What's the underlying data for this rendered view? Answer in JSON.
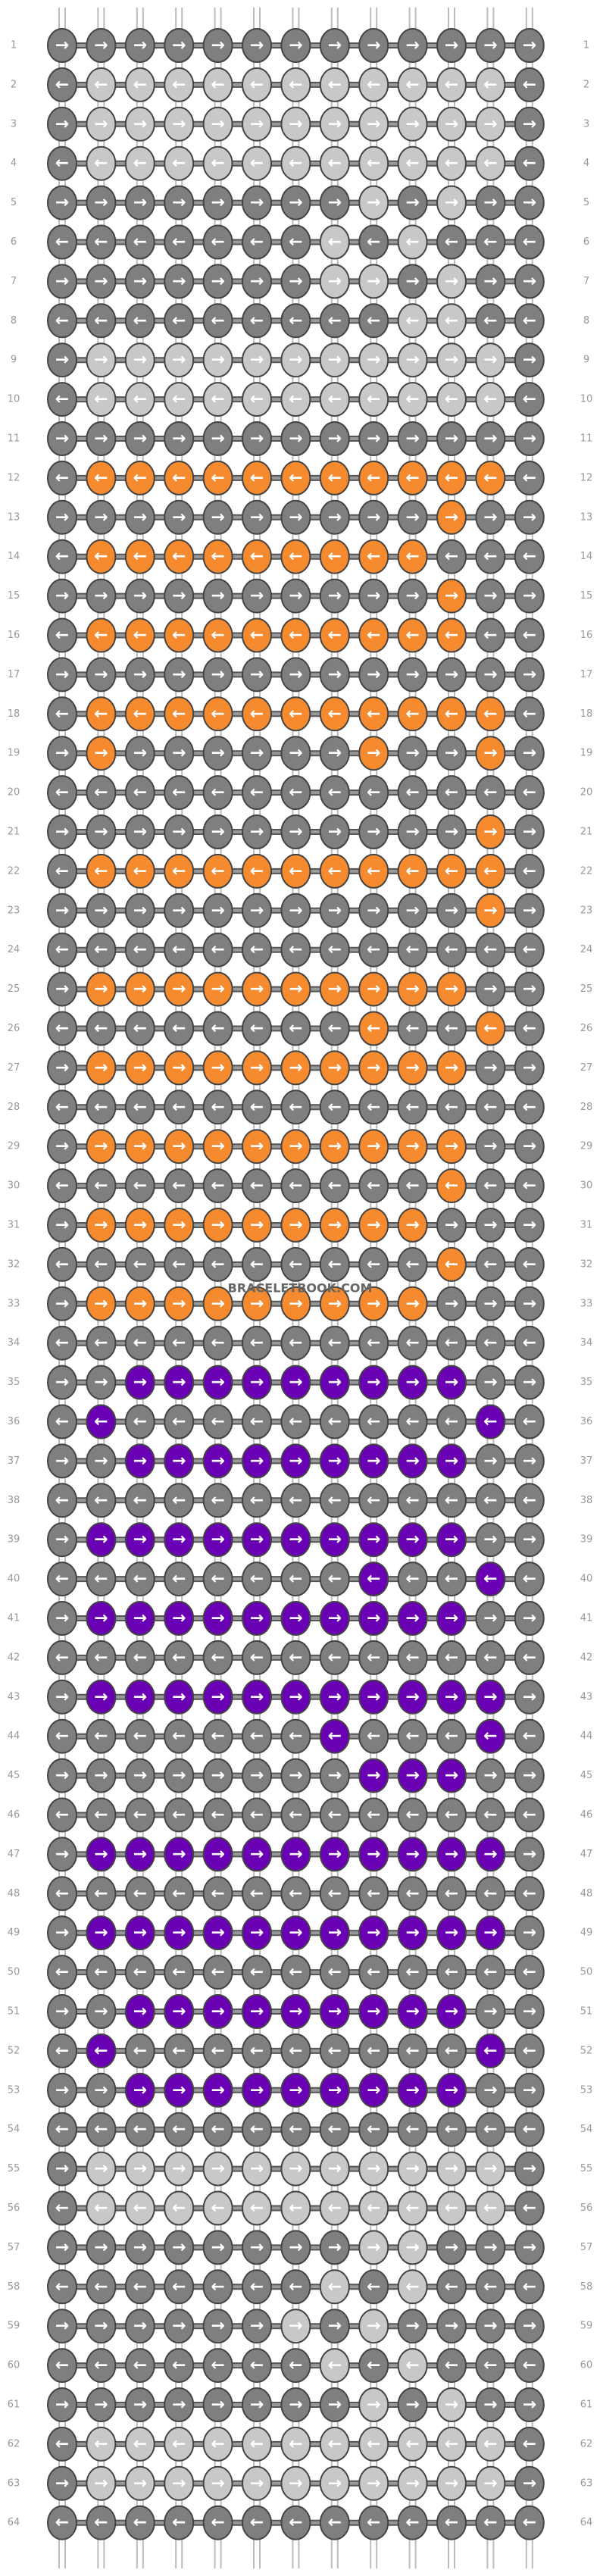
{
  "pattern": {
    "watermark": "BRACELETBOOK.COM",
    "colors": {
      "G": "#7f7f7f",
      "L": "#c8c8c8",
      "O": "#f58a2e",
      "P": "#6a00b4"
    },
    "rows": [
      {
        "label": 1,
        "arrow": "→",
        "knots": "GGGGGGGGGGGGG"
      },
      {
        "label": 2,
        "arrow": "←",
        "knots": "GLLLLLLLLLLLG"
      },
      {
        "label": 3,
        "arrow": "→",
        "knots": "GLLLLLLLLLLLG"
      },
      {
        "label": 4,
        "arrow": "←",
        "knots": "GLLLLLLLLLLLG"
      },
      {
        "label": 5,
        "arrow": "→",
        "knots": "GGGGGGGGLGLGG"
      },
      {
        "label": 6,
        "arrow": "←",
        "knots": "GGGGGGGLGLGGG"
      },
      {
        "label": 7,
        "arrow": "→",
        "knots": "GGGGGGGLLGLGG"
      },
      {
        "label": 8,
        "arrow": "←",
        "knots": "GGGGGGGGGLLGG"
      },
      {
        "label": 9,
        "arrow": "→",
        "knots": "GLLLLLLLLLLLG"
      },
      {
        "label": 10,
        "arrow": "←",
        "knots": "GLLLLLLLLLLLG"
      },
      {
        "label": 11,
        "arrow": "→",
        "knots": "GGGGGGGGGGGGG"
      },
      {
        "label": 12,
        "arrow": "←",
        "knots": "GOOOOOOOOOOOG"
      },
      {
        "label": 13,
        "arrow": "→",
        "knots": "GGGGGGGGGGOGG"
      },
      {
        "label": 14,
        "arrow": "←",
        "knots": "GOOOOOOOOOGGG"
      },
      {
        "label": 15,
        "arrow": "→",
        "knots": "GGGGGGGGGGOGG"
      },
      {
        "label": 16,
        "arrow": "←",
        "knots": "GOOOOOOOOOOGG"
      },
      {
        "label": 17,
        "arrow": "→",
        "knots": "GGGGGGGGGGGGG"
      },
      {
        "label": 18,
        "arrow": "←",
        "knots": "GOOOOOOOOOOOG"
      },
      {
        "label": 19,
        "arrow": "→",
        "knots": "GOGGGGGGOGGOG"
      },
      {
        "label": 20,
        "arrow": "←",
        "knots": "GGGGGGGGGGGGG"
      },
      {
        "label": 21,
        "arrow": "→",
        "knots": "GGGGGGGGGGGOG"
      },
      {
        "label": 22,
        "arrow": "←",
        "knots": "GOOOOOOOOOOOG"
      },
      {
        "label": 23,
        "arrow": "→",
        "knots": "GGGGGGGGGGGOG"
      },
      {
        "label": 24,
        "arrow": "←",
        "knots": "GGGGGGGGGGGGG"
      },
      {
        "label": 25,
        "arrow": "→",
        "knots": "GOOOOOOOOOOGG"
      },
      {
        "label": 26,
        "arrow": "←",
        "knots": "GGGGGGGGOGGOG"
      },
      {
        "label": 27,
        "arrow": "→",
        "knots": "GOOOOOOOOOOGG"
      },
      {
        "label": 28,
        "arrow": "←",
        "knots": "GGGGGGGGGGGGG"
      },
      {
        "label": 29,
        "arrow": "→",
        "knots": "GOOOOOOOOOOGG"
      },
      {
        "label": 30,
        "arrow": "←",
        "knots": "GGGGGGGGGGOGG"
      },
      {
        "label": 31,
        "arrow": "→",
        "knots": "GOOOOOOOOOGGG"
      },
      {
        "label": 32,
        "arrow": "←",
        "knots": "GGGGGGGGGGOGG"
      },
      {
        "label": 33,
        "arrow": "→",
        "knots": "GOOOOOOOOOGGG"
      },
      {
        "label": 34,
        "arrow": "←",
        "knots": "GGGGGGGGGGGGG"
      },
      {
        "label": 35,
        "arrow": "→",
        "knots": "GGPPPPPPPPPGG"
      },
      {
        "label": 36,
        "arrow": "←",
        "knots": "GPGGGGGGGGGPG"
      },
      {
        "label": 37,
        "arrow": "→",
        "knots": "GGPPPPPPPPPGG"
      },
      {
        "label": 38,
        "arrow": "←",
        "knots": "GGGGGGGGGGGGG"
      },
      {
        "label": 39,
        "arrow": "→",
        "knots": "GPPPPPPPPPPGG"
      },
      {
        "label": 40,
        "arrow": "←",
        "knots": "GGGGGGGGPGGPG"
      },
      {
        "label": 41,
        "arrow": "→",
        "knots": "GPPPPPPPPPPGG"
      },
      {
        "label": 42,
        "arrow": "←",
        "knots": "GGGGGGGGGGGGG"
      },
      {
        "label": 43,
        "arrow": "→",
        "knots": "GPPPPPPPPPPPG"
      },
      {
        "label": 44,
        "arrow": "←",
        "knots": "GGGGGGGPGGGPG"
      },
      {
        "label": 45,
        "arrow": "→",
        "knots": "GGGGGGGGPPPGG"
      },
      {
        "label": 46,
        "arrow": "←",
        "knots": "GGGGGGGGGGGGG"
      },
      {
        "label": 47,
        "arrow": "→",
        "knots": "GPPPPPPPPPPPG"
      },
      {
        "label": 48,
        "arrow": "←",
        "knots": "GGGGGGGGGGGGG"
      },
      {
        "label": 49,
        "arrow": "→",
        "knots": "GPPPPPPPPPPPG"
      },
      {
        "label": 50,
        "arrow": "←",
        "knots": "GGGGGGGGGGGGG"
      },
      {
        "label": 51,
        "arrow": "→",
        "knots": "GGPPPPPPPPPGG"
      },
      {
        "label": 52,
        "arrow": "←",
        "knots": "GPGGGGGGGGGPG"
      },
      {
        "label": 53,
        "arrow": "→",
        "knots": "GGPPPPPPPPPGG"
      },
      {
        "label": 54,
        "arrow": "←",
        "knots": "GGGGGGGGGGGGG"
      },
      {
        "label": 55,
        "arrow": "→",
        "knots": "GLLLLLLLLLLLG"
      },
      {
        "label": 56,
        "arrow": "←",
        "knots": "GLLLLLLLLLLLG"
      },
      {
        "label": 57,
        "arrow": "→",
        "knots": "GGGGGGGGLLGGG"
      },
      {
        "label": 58,
        "arrow": "←",
        "knots": "GGGGGGGLGLGGG"
      },
      {
        "label": 59,
        "arrow": "→",
        "knots": "GGGGGGLGLGGGG"
      },
      {
        "label": 60,
        "arrow": "←",
        "knots": "GGGGGGGLGLGGG"
      },
      {
        "label": 61,
        "arrow": "→",
        "knots": "GGGGGGGGLGLGG"
      },
      {
        "label": 62,
        "arrow": "←",
        "knots": "GLLLLLLLLLLLG"
      },
      {
        "label": 63,
        "arrow": "→",
        "knots": "GLLLLLLLLLLLG"
      },
      {
        "label": 64,
        "arrow": "←",
        "knots": "GGGGGGGGGGGGG"
      }
    ]
  }
}
